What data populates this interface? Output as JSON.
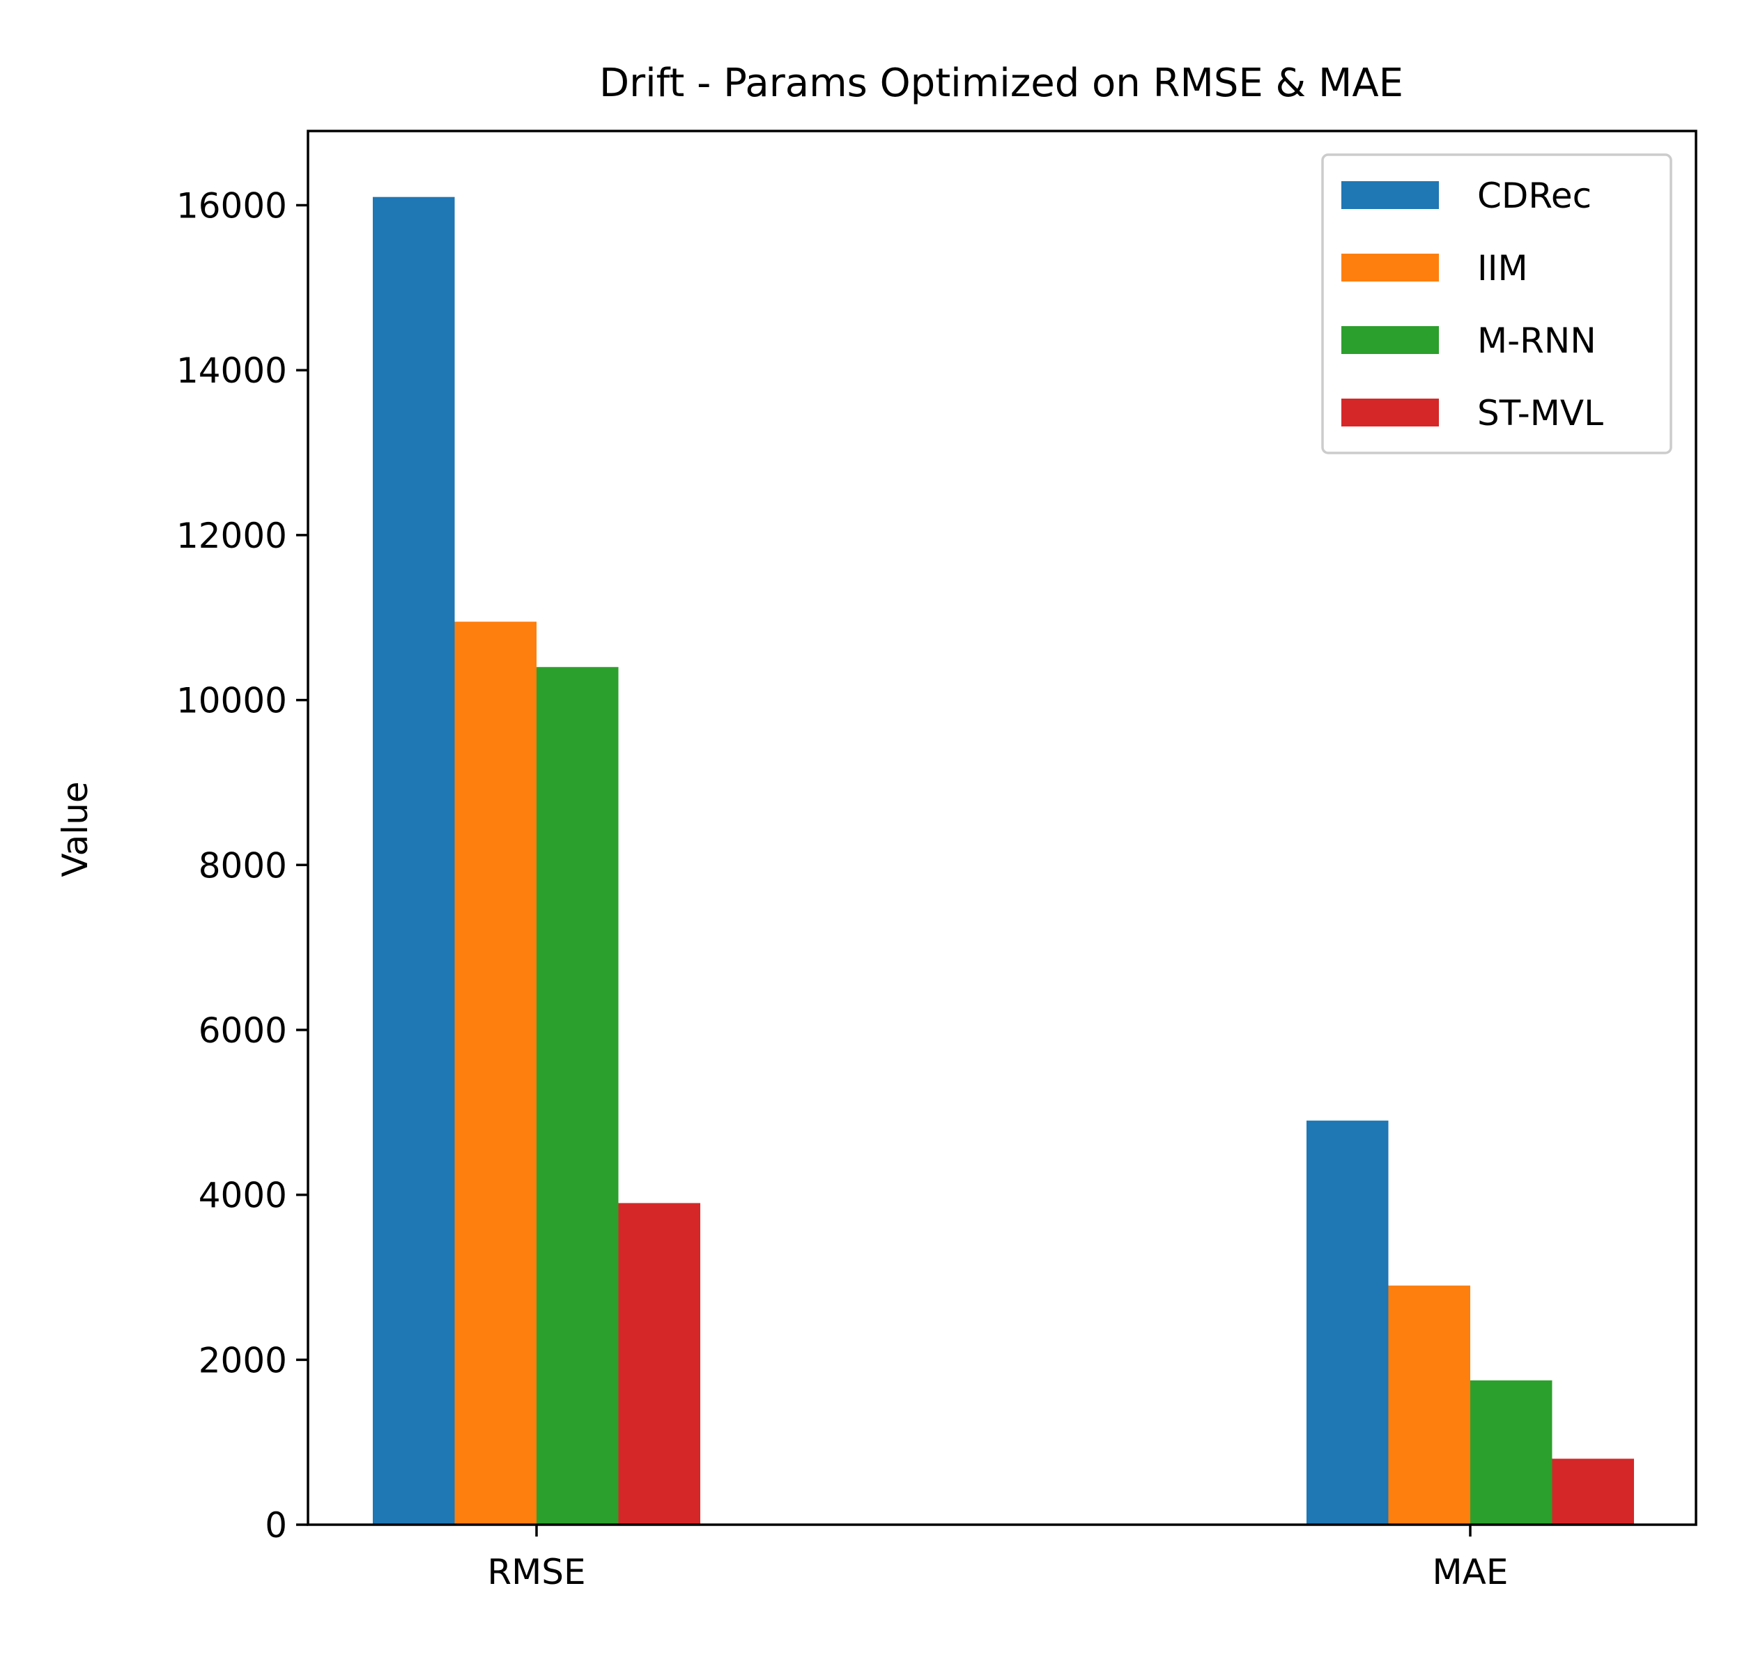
{
  "chart_data": {
    "type": "bar",
    "title": "Drift - Params Optimized on RMSE & MAE",
    "xlabel": "",
    "ylabel": "Value",
    "categories": [
      "RMSE",
      "MAE"
    ],
    "series": [
      {
        "name": "CDRec",
        "values": [
          16100,
          4900
        ],
        "color": "#1f77b4"
      },
      {
        "name": "IIM",
        "values": [
          10950,
          2900
        ],
        "color": "#ff7f0e"
      },
      {
        "name": "M-RNN",
        "values": [
          10400,
          1750
        ],
        "color": "#2ca02c"
      },
      {
        "name": "ST-MVL",
        "values": [
          3900,
          800
        ],
        "color": "#d62728"
      }
    ],
    "ylim": [
      0,
      16900
    ],
    "yticks": [
      0,
      2000,
      4000,
      6000,
      8000,
      10000,
      12000,
      14000,
      16000
    ],
    "ytick_labels": [
      "0",
      "2000",
      "4000",
      "6000",
      "8000",
      "10000",
      "12000",
      "14000",
      "16000"
    ],
    "grid": false,
    "legend_position": "top-right"
  }
}
